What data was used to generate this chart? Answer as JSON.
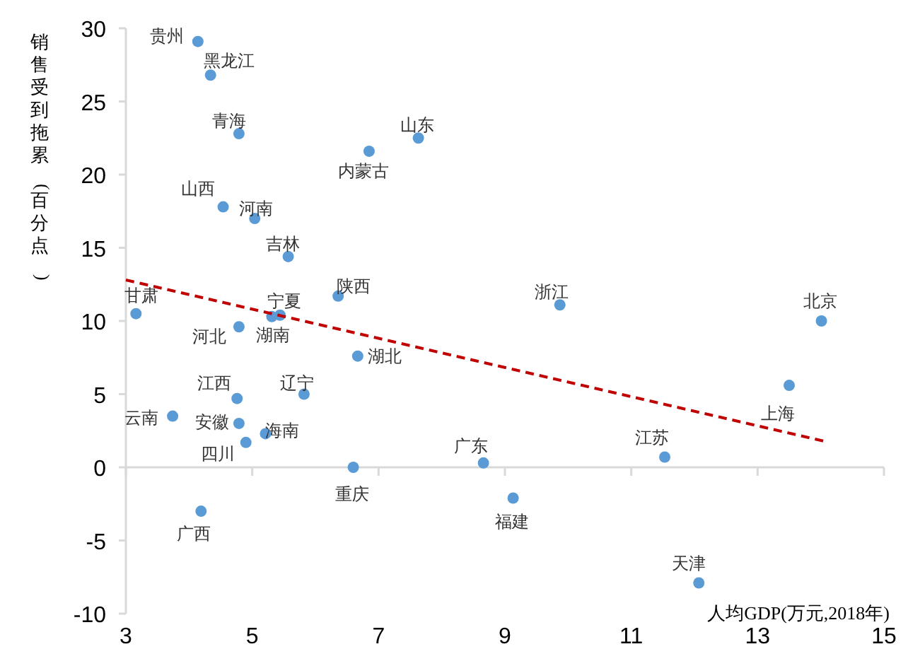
{
  "chart_data": {
    "type": "scatter",
    "xlabel": "人均GDP(万元,2018年)",
    "ylabel": "销售受到拖累(百分点)",
    "xlim": [
      3,
      15
    ],
    "xticks": [
      3,
      5,
      7,
      9,
      11,
      13,
      15
    ],
    "ylim": [
      -10,
      30
    ],
    "yticks": [
      -10,
      -5,
      0,
      5,
      10,
      15,
      20,
      25,
      30
    ],
    "series": [
      {
        "type": "scatter",
        "marker": "circle",
        "color": "#5b9bd5",
        "x": [
          4.14,
          4.34,
          4.79,
          7.63,
          6.85,
          4.54,
          5.04,
          5.57,
          6.36,
          9.87,
          14.01,
          3.16,
          5.44,
          5.31,
          4.79,
          6.67,
          13.5,
          4.76,
          5.82,
          3.74,
          4.79,
          5.21,
          4.9,
          6.6,
          8.66,
          11.53,
          9.13,
          4.19,
          12.07
        ],
        "values": [
          29.1,
          26.8,
          22.8,
          22.5,
          21.6,
          17.8,
          17.0,
          14.4,
          11.7,
          11.1,
          10.0,
          10.5,
          10.4,
          10.3,
          9.6,
          7.6,
          5.6,
          4.7,
          5.0,
          3.5,
          3.0,
          2.3,
          1.7,
          0,
          0.3,
          0.7,
          -2.1,
          -3.0,
          -7.9
        ]
      },
      {
        "type": "line",
        "marker": "none",
        "line_style": "dashed",
        "color": "#c00000",
        "x": [
          3,
          14.04
        ],
        "values": [
          12.8,
          1.8
        ]
      }
    ],
    "annotations": [
      {
        "text": "贵州",
        "x": 4.14,
        "y": 29.1
      },
      {
        "text": "黑龙江",
        "x": 4.34,
        "y": 26.8
      },
      {
        "text": "青海",
        "x": 4.79,
        "y": 22.8
      },
      {
        "text": "山东",
        "x": 7.63,
        "y": 22.5
      },
      {
        "text": "内蒙古",
        "x": 6.85,
        "y": 21.6
      },
      {
        "text": "山西",
        "x": 4.54,
        "y": 17.8
      },
      {
        "text": "河南",
        "x": 5.04,
        "y": 17.0
      },
      {
        "text": "吉林",
        "x": 5.57,
        "y": 14.4
      },
      {
        "text": "陕西",
        "x": 6.36,
        "y": 11.7
      },
      {
        "text": "浙江",
        "x": 9.87,
        "y": 11.1
      },
      {
        "text": "北京",
        "x": 14.01,
        "y": 10.0
      },
      {
        "text": "甘肃",
        "x": 3.16,
        "y": 10.5
      },
      {
        "text": "宁夏",
        "x": 5.44,
        "y": 10.4
      },
      {
        "text": "湖南",
        "x": 5.31,
        "y": 10.3
      },
      {
        "text": "河北",
        "x": 4.79,
        "y": 9.6
      },
      {
        "text": "湖北",
        "x": 6.67,
        "y": 7.6
      },
      {
        "text": "上海",
        "x": 13.5,
        "y": 5.6
      },
      {
        "text": "江西",
        "x": 4.76,
        "y": 4.7
      },
      {
        "text": "辽宁",
        "x": 5.82,
        "y": 5.0
      },
      {
        "text": "云南",
        "x": 3.74,
        "y": 3.5
      },
      {
        "text": "安徽",
        "x": 4.79,
        "y": 3.0
      },
      {
        "text": "海南",
        "x": 5.21,
        "y": 2.3
      },
      {
        "text": "四川",
        "x": 4.9,
        "y": 1.7
      },
      {
        "text": "重庆",
        "x": 6.6,
        "y": 0
      },
      {
        "text": "广东",
        "x": 8.66,
        "y": 0.3
      },
      {
        "text": "江苏",
        "x": 11.53,
        "y": 0.7
      },
      {
        "text": "福建",
        "x": 9.13,
        "y": -2.1
      },
      {
        "text": "广西",
        "x": 4.19,
        "y": -3.0
      },
      {
        "text": "天津",
        "x": 12.07,
        "y": -7.9
      }
    ]
  }
}
